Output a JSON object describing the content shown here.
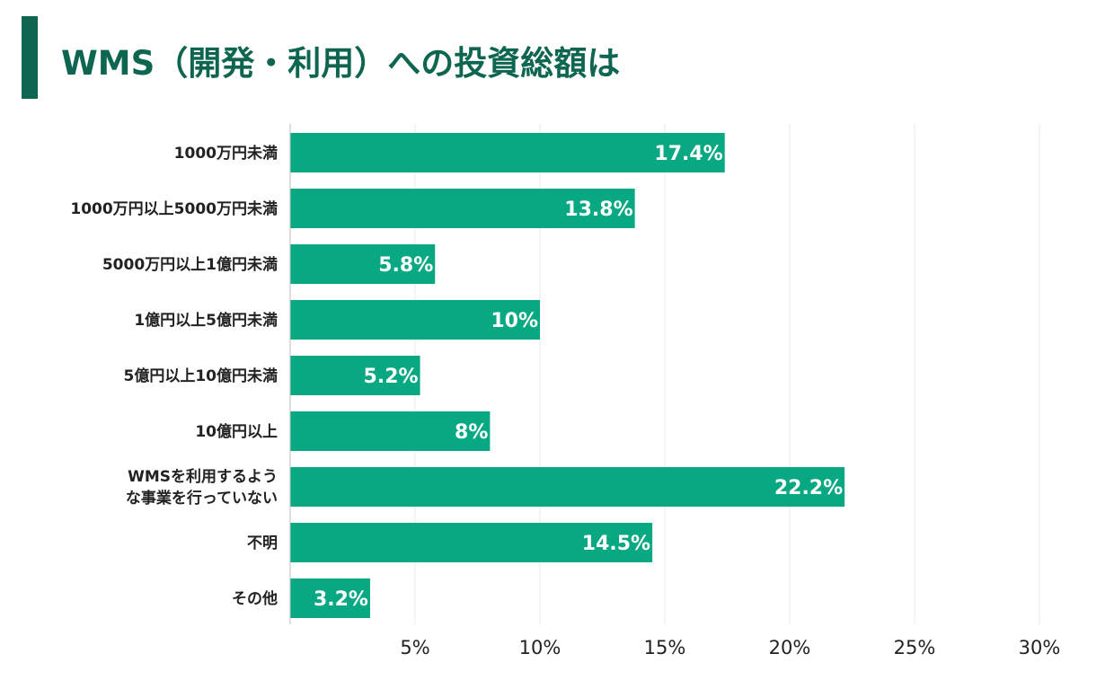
{
  "title": "WMS（開発・利用）への投資総額は",
  "colors": {
    "accent": "#0e6650",
    "bar": "#07a882",
    "grid": "#e9e9e9"
  },
  "chart_data": {
    "type": "bar",
    "orientation": "horizontal",
    "categories": [
      "1000万円未満",
      "1000万円以上5000万円未満",
      "5000万円以上1億円未満",
      "1億円以上5億円未満",
      "5億円以上10億円未満",
      "10億円以上",
      "WMSを利用するような事業を行っていない",
      "不明",
      "その他"
    ],
    "category_label_lines": [
      [
        "1000万円未満"
      ],
      [
        "1000万円以上5000万円未満"
      ],
      [
        "5000万円以上1億円未満"
      ],
      [
        "1億円以上5億円未満"
      ],
      [
        "5億円以上10億円未満"
      ],
      [
        "10億円以上"
      ],
      [
        "WMSを利用するよう",
        "な事業を行っていない"
      ],
      [
        "不明"
      ],
      [
        "その他"
      ]
    ],
    "values": [
      17.4,
      13.8,
      5.8,
      10,
      5.2,
      8,
      22.2,
      14.5,
      3.2
    ],
    "value_labels": [
      "17.4%",
      "13.8%",
      "5.8%",
      "10%",
      "5.2%",
      "8%",
      "22.2%",
      "14.5%",
      "3.2%"
    ],
    "xlim": [
      0,
      30
    ],
    "xticks": [
      5,
      10,
      15,
      20,
      25,
      30
    ],
    "xtick_labels": [
      "5%",
      "10%",
      "15%",
      "20%",
      "25%",
      "30%"
    ],
    "grid": true
  }
}
